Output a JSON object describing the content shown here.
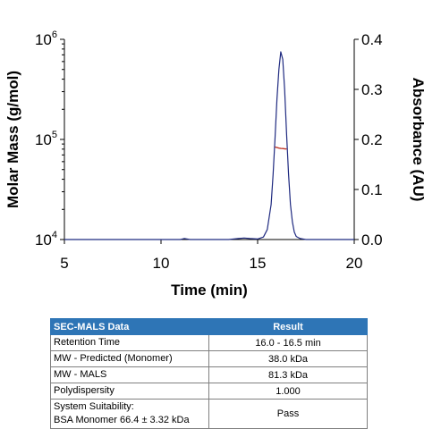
{
  "chart_data": {
    "type": "line",
    "xlabel": "Time (min)",
    "ylabel_left": "Molar Mass (g/mol)",
    "ylabel_right": "Absorbance (AU)",
    "xlim": [
      5,
      20
    ],
    "x_ticks": [
      "5",
      "10",
      "15",
      "20"
    ],
    "y_left_scale": "log",
    "y_left_lim": [
      10000,
      1000000
    ],
    "y_left_ticks": [
      {
        "base": "10",
        "exp": "4",
        "value": 10000
      },
      {
        "base": "10",
        "exp": "5",
        "value": 100000
      },
      {
        "base": "10",
        "exp": "6",
        "value": 1000000
      }
    ],
    "y_right_lim": [
      0,
      0.4
    ],
    "y_right_ticks": [
      "0.0",
      "0.1",
      "0.2",
      "0.3",
      "0.4"
    ],
    "grid": false,
    "series": [
      {
        "axis": "right",
        "color": "#1f2a80",
        "x": [
          5.0,
          10.0,
          11.0,
          11.2,
          11.5,
          12.5,
          13.5,
          14.0,
          14.3,
          14.6,
          15.0,
          15.3,
          15.5,
          15.7,
          15.8,
          15.9,
          16.0,
          16.1,
          16.2,
          16.3,
          16.4,
          16.5,
          16.6,
          16.7,
          16.8,
          16.9,
          17.0,
          17.2,
          17.5,
          18.0,
          20.0
        ],
        "y": [
          0.0,
          0.0,
          0.0,
          0.002,
          0.0,
          0.0,
          0.0,
          0.002,
          0.003,
          0.002,
          0.001,
          0.005,
          0.02,
          0.07,
          0.13,
          0.2,
          0.28,
          0.34,
          0.375,
          0.36,
          0.3,
          0.21,
          0.13,
          0.07,
          0.035,
          0.015,
          0.006,
          0.002,
          0.0,
          0.0,
          0.0
        ]
      },
      {
        "axis": "left",
        "color": "#c0392b",
        "x": [
          15.9,
          16.0,
          16.1,
          16.2,
          16.3,
          16.4,
          16.5
        ],
        "y": [
          84000,
          83000,
          82000,
          81300,
          81000,
          80600,
          80300
        ]
      }
    ]
  },
  "table": {
    "headers": [
      "SEC-MALS Data",
      "Result"
    ],
    "rows": [
      {
        "label": [
          "Retention Time"
        ],
        "value": "16.0 - 16.5 min"
      },
      {
        "label": [
          "MW - Predicted (Monomer)"
        ],
        "value": "38.0 kDa"
      },
      {
        "label": [
          "MW - MALS"
        ],
        "value": "81.3 kDa"
      },
      {
        "label": [
          "Polydispersity"
        ],
        "value": "1.000"
      },
      {
        "label": [
          "System Suitability:",
          "BSA Monomer 66.4 ± 3.32 kDa"
        ],
        "value": "Pass"
      }
    ]
  }
}
